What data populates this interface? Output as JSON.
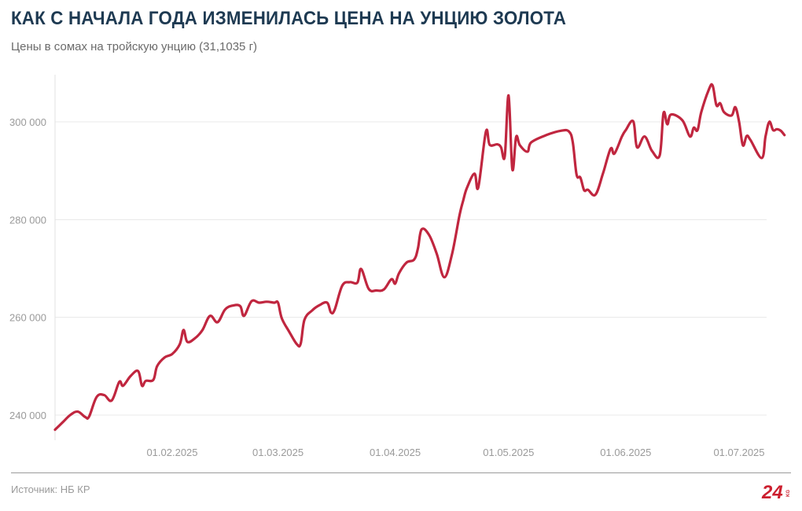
{
  "title": "КАК С НАЧАЛА ГОДА ИЗМЕНИЛАСЬ ЦЕНА НА УНЦИЮ ЗОЛОТА",
  "subtitle": "Цены в сомах на тройскую унцию (31,1035 г)",
  "source": "Источник: НБ КР",
  "logo": {
    "text": "24",
    "small_text": "KG",
    "color": "#cc1f2f"
  },
  "colors": {
    "line": "#c0263f",
    "grid": "#e8e8e8",
    "axis_text": "#9a9a9a",
    "title": "#1e3a52"
  },
  "chart_data": {
    "type": "line",
    "title": "КАК С НАЧАЛА ГОДА ИЗМЕНИЛАСЬ ЦЕНА НА УНЦИЮ ЗОЛОТА",
    "subtitle": "Цены в сомах на тройскую унцию (31,1035 г)",
    "xlabel": "",
    "ylabel": "",
    "xlim": [
      "2025-01-01",
      "2025-07-11"
    ],
    "ylim": [
      235000,
      310000
    ],
    "grid": true,
    "legend": "none",
    "y_ticks": [
      240000,
      260000,
      280000,
      300000
    ],
    "y_tick_labels": [
      "240 000",
      "260 000",
      "280 000",
      "300 000"
    ],
    "x_ticks": [
      "2025-02-01",
      "2025-03-01",
      "2025-04-01",
      "2025-05-01",
      "2025-06-01",
      "2025-07-01"
    ],
    "x_tick_labels": [
      "01.02.2025",
      "01.03.2025",
      "01.04.2025",
      "01.05.2025",
      "01.06.2025",
      "01.07.2025"
    ],
    "series": [
      {
        "points": [
          [
            "2025-01-01",
            237000
          ],
          [
            "2025-01-03",
            238500
          ],
          [
            "2025-01-05",
            240000
          ],
          [
            "2025-01-07",
            240700
          ],
          [
            "2025-01-09",
            239600
          ],
          [
            "2025-01-10",
            239700
          ],
          [
            "2025-01-12",
            243700
          ],
          [
            "2025-01-14",
            244100
          ],
          [
            "2025-01-16",
            243000
          ],
          [
            "2025-01-18",
            246800
          ],
          [
            "2025-01-19",
            246000
          ],
          [
            "2025-01-21",
            248000
          ],
          [
            "2025-01-23",
            249000
          ],
          [
            "2025-01-24",
            246000
          ],
          [
            "2025-01-25",
            247000
          ],
          [
            "2025-01-27",
            247200
          ],
          [
            "2025-01-28",
            250000
          ],
          [
            "2025-01-30",
            251800
          ],
          [
            "2025-02-01",
            252500
          ],
          [
            "2025-02-03",
            254500
          ],
          [
            "2025-02-04",
            257400
          ],
          [
            "2025-02-05",
            255000
          ],
          [
            "2025-02-07",
            255700
          ],
          [
            "2025-02-09",
            257400
          ],
          [
            "2025-02-11",
            260300
          ],
          [
            "2025-02-13",
            259000
          ],
          [
            "2025-02-15",
            261600
          ],
          [
            "2025-02-17",
            262400
          ],
          [
            "2025-02-19",
            262300
          ],
          [
            "2025-02-20",
            260300
          ],
          [
            "2025-02-22",
            263300
          ],
          [
            "2025-02-24",
            263000
          ],
          [
            "2025-02-26",
            263200
          ],
          [
            "2025-02-28",
            263000
          ],
          [
            "2025-03-01",
            263000
          ],
          [
            "2025-03-02",
            259800
          ],
          [
            "2025-03-04",
            257000
          ],
          [
            "2025-03-06",
            254500
          ],
          [
            "2025-03-07",
            254600
          ],
          [
            "2025-03-08",
            259500
          ],
          [
            "2025-03-10",
            261400
          ],
          [
            "2025-03-12",
            262500
          ],
          [
            "2025-03-14",
            263000
          ],
          [
            "2025-03-15",
            261000
          ],
          [
            "2025-03-16",
            261600
          ],
          [
            "2025-03-18",
            266500
          ],
          [
            "2025-03-20",
            267200
          ],
          [
            "2025-03-22",
            267100
          ],
          [
            "2025-03-23",
            269900
          ],
          [
            "2025-03-25",
            265800
          ],
          [
            "2025-03-27",
            265500
          ],
          [
            "2025-03-29",
            265700
          ],
          [
            "2025-03-31",
            267800
          ],
          [
            "2025-04-01",
            266900
          ],
          [
            "2025-04-02",
            269000
          ],
          [
            "2025-04-04",
            271200
          ],
          [
            "2025-04-06",
            271800
          ],
          [
            "2025-04-07",
            274000
          ],
          [
            "2025-04-08",
            278000
          ],
          [
            "2025-04-10",
            276800
          ],
          [
            "2025-04-12",
            273000
          ],
          [
            "2025-04-14",
            268200
          ],
          [
            "2025-04-16",
            272800
          ],
          [
            "2025-04-18",
            280800
          ],
          [
            "2025-04-19",
            283900
          ],
          [
            "2025-04-20",
            286500
          ],
          [
            "2025-04-22",
            289400
          ],
          [
            "2025-04-23",
            286600
          ],
          [
            "2025-04-25",
            298000
          ],
          [
            "2025-04-26",
            295300
          ],
          [
            "2025-04-28",
            295400
          ],
          [
            "2025-04-29",
            294800
          ],
          [
            "2025-04-30",
            293000
          ],
          [
            "2025-05-01",
            305400
          ],
          [
            "2025-05-02",
            290300
          ],
          [
            "2025-05-03",
            296900
          ],
          [
            "2025-05-04",
            295200
          ],
          [
            "2025-05-06",
            293900
          ],
          [
            "2025-05-07",
            295800
          ],
          [
            "2025-05-11",
            297300
          ],
          [
            "2025-05-15",
            298200
          ],
          [
            "2025-05-17",
            298000
          ],
          [
            "2025-05-18",
            295800
          ],
          [
            "2025-05-19",
            289200
          ],
          [
            "2025-05-20",
            288600
          ],
          [
            "2025-05-21",
            286000
          ],
          [
            "2025-05-22",
            286100
          ],
          [
            "2025-05-24",
            285100
          ],
          [
            "2025-05-26",
            289500
          ],
          [
            "2025-05-28",
            294500
          ],
          [
            "2025-05-29",
            293500
          ],
          [
            "2025-05-31",
            297000
          ],
          [
            "2025-06-01",
            298300
          ],
          [
            "2025-06-03",
            300100
          ],
          [
            "2025-06-04",
            294800
          ],
          [
            "2025-06-06",
            297000
          ],
          [
            "2025-06-08",
            294000
          ],
          [
            "2025-06-10",
            293200
          ],
          [
            "2025-06-11",
            301800
          ],
          [
            "2025-06-12",
            299500
          ],
          [
            "2025-06-13",
            301500
          ],
          [
            "2025-06-16",
            300300
          ],
          [
            "2025-06-18",
            297000
          ],
          [
            "2025-06-19",
            298800
          ],
          [
            "2025-06-20",
            298300
          ],
          [
            "2025-06-21",
            302000
          ],
          [
            "2025-06-23",
            306600
          ],
          [
            "2025-06-24",
            307400
          ],
          [
            "2025-06-25",
            303400
          ],
          [
            "2025-06-26",
            303800
          ],
          [
            "2025-06-27",
            302000
          ],
          [
            "2025-06-29",
            301300
          ],
          [
            "2025-06-30",
            303000
          ],
          [
            "2025-07-01",
            300000
          ],
          [
            "2025-07-02",
            295200
          ],
          [
            "2025-07-03",
            297100
          ],
          [
            "2025-07-04",
            296300
          ],
          [
            "2025-07-07",
            292600
          ],
          [
            "2025-07-08",
            297000
          ],
          [
            "2025-07-09",
            300000
          ],
          [
            "2025-07-10",
            298300
          ],
          [
            "2025-07-11",
            298500
          ],
          [
            "2025-07-12",
            298200
          ],
          [
            "2025-07-13",
            297300
          ]
        ]
      }
    ]
  }
}
